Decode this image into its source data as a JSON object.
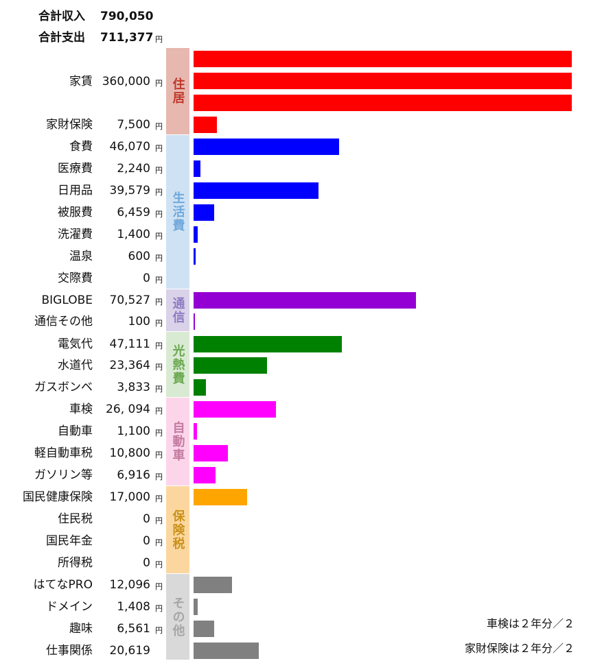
{
  "summary": {
    "income_label": "合計収入",
    "income_value": "790,050",
    "expense_label": "合計支出",
    "expense_value": "711,377",
    "unit": "円"
  },
  "notes": [
    "車検は２年分／２",
    "家財保険は２年分／２"
  ],
  "chart_data": {
    "type": "bar",
    "orientation": "horizontal",
    "unit": "円",
    "bar_full_scale": 120000,
    "categories": [
      "家賃",
      "家財保険",
      "食費",
      "医療費",
      "日用品",
      "被服費",
      "洗濯費",
      "温泉",
      "交際費",
      "BIGLOBE",
      "通信その他",
      "電気代",
      "水道代",
      "ガスボンベ",
      "車検",
      "自動車",
      "軽自動車税",
      "ガソリン等",
      "国民健康保険",
      "住民税",
      "国民年金",
      "所得税",
      "はてなPRO",
      "ドメイン",
      "趣味",
      "仕事関係"
    ],
    "value_labels": [
      "360,000",
      "7,500",
      "46,070",
      "2,240",
      "39,579",
      "6,459",
      "1,400",
      "600",
      "0",
      "70,527",
      "100",
      "47,111",
      "23,364",
      "3,833",
      "26, 094",
      "1,100",
      "10,800",
      "6,916",
      "17,000",
      "0",
      "0",
      "0",
      "12,096",
      "1,408",
      "6,561",
      "20,619"
    ],
    "values": [
      360000,
      7500,
      46070,
      2240,
      39579,
      6459,
      1400,
      600,
      0,
      70527,
      100,
      47111,
      23364,
      3833,
      26094,
      1100,
      10800,
      6916,
      17000,
      0,
      0,
      0,
      12096,
      1408,
      6561,
      20619
    ],
    "show_unit": [
      true,
      true,
      true,
      true,
      true,
      true,
      true,
      true,
      true,
      true,
      true,
      true,
      true,
      true,
      true,
      true,
      true,
      true,
      true,
      true,
      true,
      true,
      true,
      true,
      true,
      false
    ],
    "groups": [
      {
        "label": "住居",
        "start": 0,
        "end": 1,
        "band_color": "#e6b8b0",
        "text_color": "#c0392b",
        "bar_color": "#ff0000"
      },
      {
        "label": "生活費",
        "start": 2,
        "end": 8,
        "band_color": "#cfe2f3",
        "text_color": "#6fa8dc",
        "bar_color": "#0000ff"
      },
      {
        "label": "通信",
        "start": 9,
        "end": 10,
        "band_color": "#d9d2e9",
        "text_color": "#8e7cc3",
        "bar_color": "#9400d3"
      },
      {
        "label": "光熱費",
        "start": 11,
        "end": 13,
        "band_color": "#d9ead3",
        "text_color": "#6aa84f",
        "bar_color": "#008000"
      },
      {
        "label": "自動車",
        "start": 14,
        "end": 17,
        "band_color": "#fdd5ea",
        "text_color": "#c27ba0",
        "bar_color": "#ff00ff"
      },
      {
        "label": "保険税",
        "start": 18,
        "end": 21,
        "band_color": "#fbd79f",
        "text_color": "#c9921b",
        "bar_color": "#ffa500"
      },
      {
        "label": "その他",
        "start": 22,
        "end": 25,
        "band_color": "#d9d9d9",
        "text_color": "#a6a6a6",
        "bar_color": "#808080"
      }
    ]
  }
}
